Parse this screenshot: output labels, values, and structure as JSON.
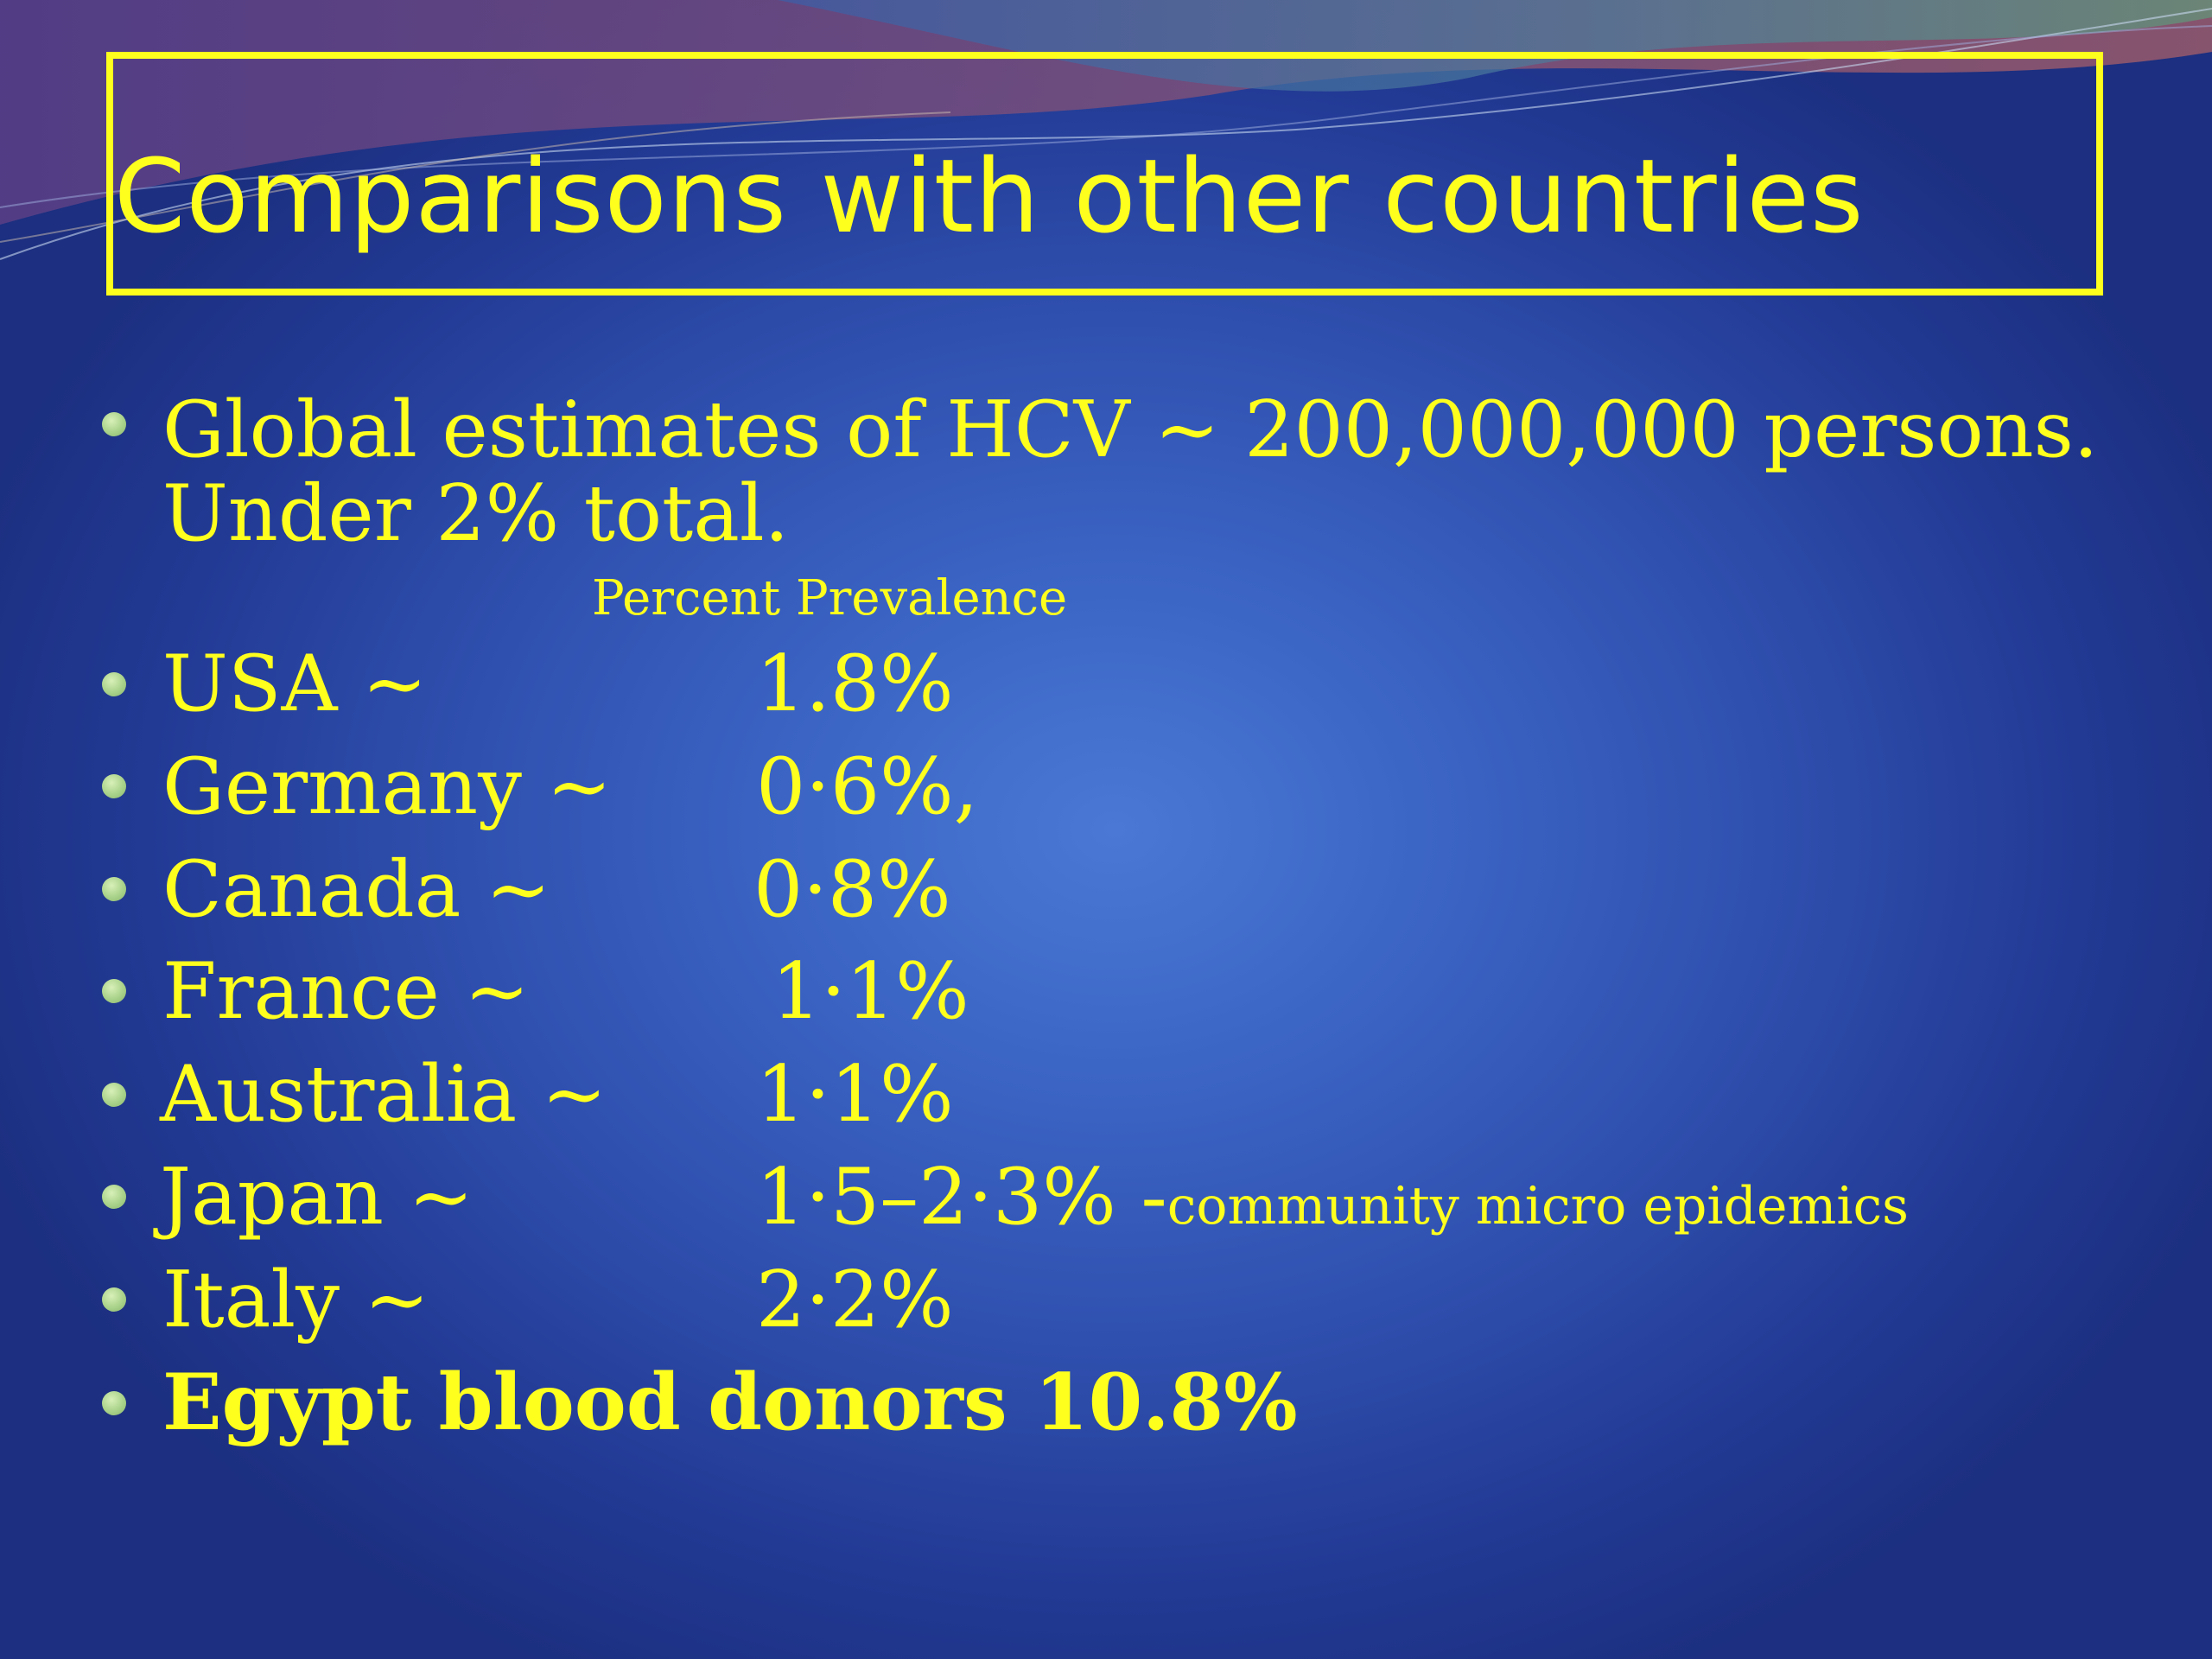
{
  "slide": {
    "title": "Comparisons with other countries",
    "intro_line1": "Global estimates of HCV ~ 200,000,000 persons.",
    "intro_line2": "Under 2% total.",
    "column_header": "Percent Prevalence",
    "rows": [
      {
        "country": "USA ~",
        "value": "1.8%",
        "note": ""
      },
      {
        "country": "Germany ~",
        "value": "0·6%,",
        "note": ""
      },
      {
        "country": "Canada ~",
        "value": "0·8%",
        "note": ""
      },
      {
        "country": "France ~",
        "value": "1·1%",
        "note": ""
      },
      {
        "country": "Australia ~",
        "value": "1·1%",
        "note": ""
      },
      {
        "country": "Japan ~",
        "value": "1·5–2·3% -",
        "note": "community micro epidemics"
      },
      {
        "country": "Italy ~",
        "value": "2·2%",
        "note": ""
      }
    ],
    "final_line": "Egypt blood donors 10.8%",
    "colors": {
      "text": "#ffff1e",
      "bullet": "#a9d28a",
      "background": "#3c66c6"
    }
  }
}
